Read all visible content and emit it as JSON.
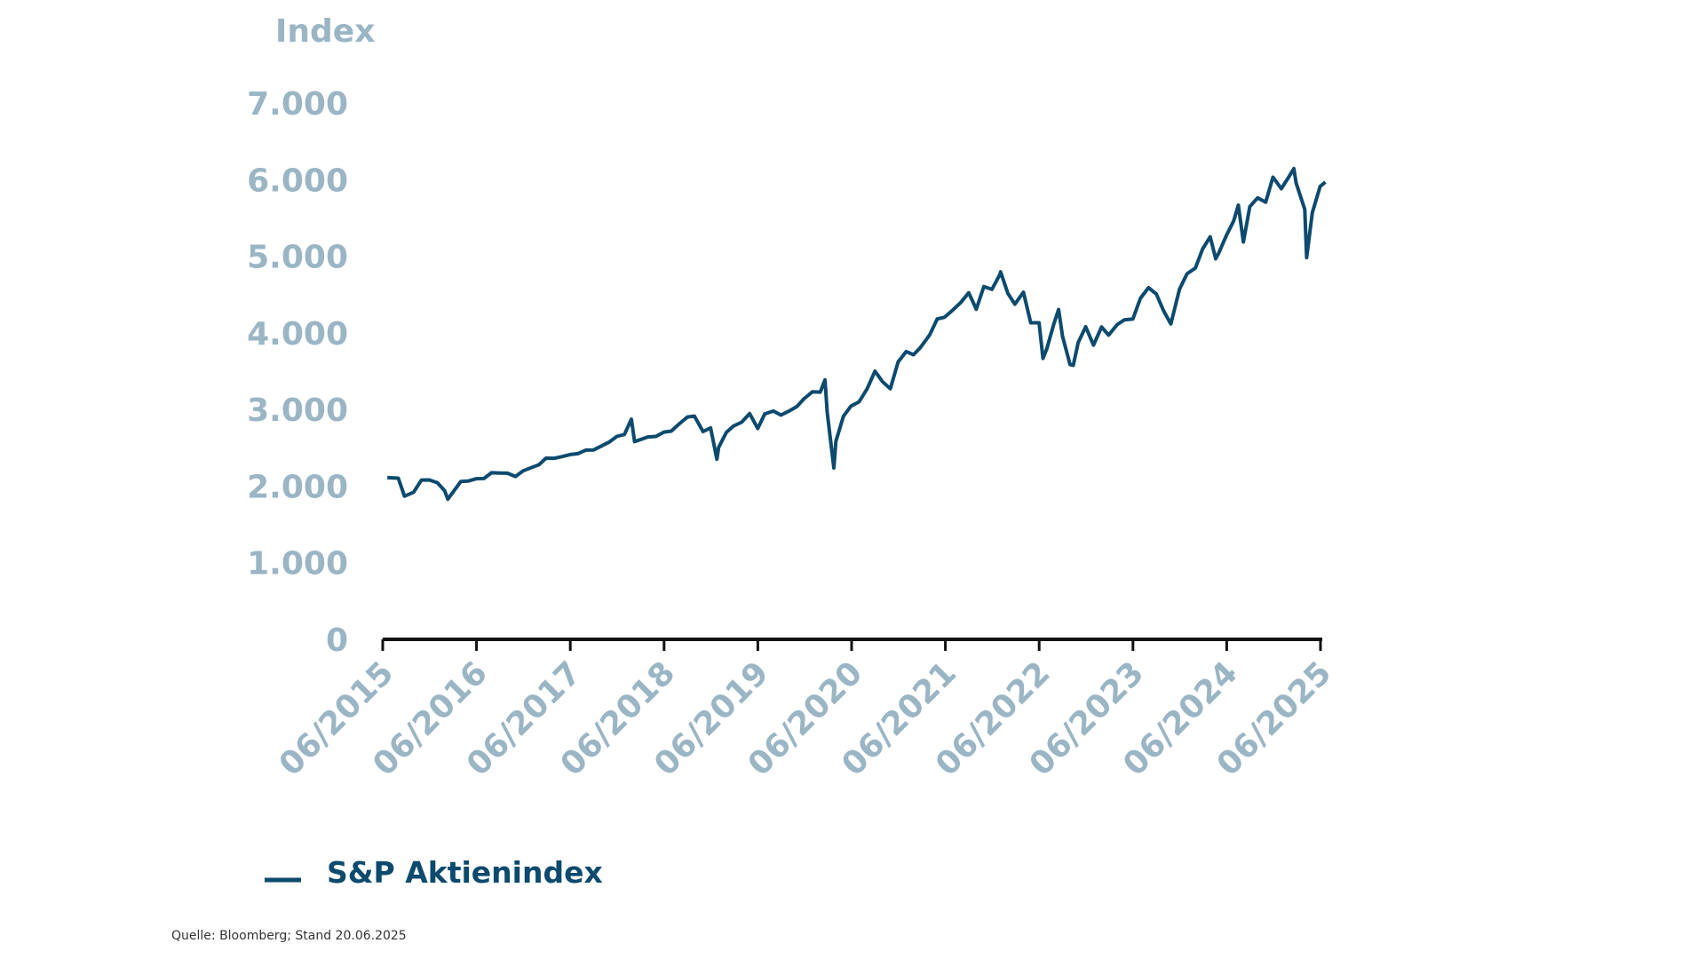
{
  "chart_data": {
    "type": "line",
    "title": "",
    "ylabel": "Index",
    "xlabel": "",
    "ylim": [
      0,
      7000
    ],
    "yticks": [
      "0",
      "1.000",
      "2.000",
      "3.000",
      "4.000",
      "5.000",
      "6.000",
      "7.000"
    ],
    "ytick_values": [
      0,
      1000,
      2000,
      3000,
      4000,
      5000,
      6000,
      7000
    ],
    "xlim": [
      "2015-06",
      "2025-06"
    ],
    "xticks": [
      "06/2015",
      "06/2016",
      "06/2017",
      "06/2018",
      "06/2019",
      "06/2020",
      "06/2021",
      "06/2022",
      "06/2023",
      "06/2024",
      "06/2025"
    ],
    "grid": false,
    "legend_position": "bottom-left",
    "series": [
      {
        "name": "S&P Aktienindex",
        "color": "#0c4a6e",
        "x": [
          "2015-06-19",
          "2015-07-31",
          "2015-08-25",
          "2015-09-30",
          "2015-10-30",
          "2015-11-30",
          "2015-12-31",
          "2016-01-29",
          "2016-02-11",
          "2016-03-31",
          "2016-04-29",
          "2016-05-31",
          "2016-06-30",
          "2016-07-29",
          "2016-08-31",
          "2016-09-30",
          "2016-10-31",
          "2016-11-30",
          "2016-12-30",
          "2017-01-31",
          "2017-02-28",
          "2017-03-31",
          "2017-04-28",
          "2017-05-31",
          "2017-06-30",
          "2017-07-31",
          "2017-08-31",
          "2017-09-29",
          "2017-10-31",
          "2017-11-30",
          "2017-12-29",
          "2018-01-26",
          "2018-02-08",
          "2018-03-29",
          "2018-04-30",
          "2018-05-31",
          "2018-06-29",
          "2018-07-31",
          "2018-08-31",
          "2018-09-28",
          "2018-10-31",
          "2018-11-30",
          "2018-12-24",
          "2018-12-31",
          "2019-01-31",
          "2019-02-28",
          "2019-03-29",
          "2019-04-30",
          "2019-05-31",
          "2019-06-28",
          "2019-07-31",
          "2019-08-30",
          "2019-09-30",
          "2019-10-31",
          "2019-11-29",
          "2019-12-31",
          "2020-01-31",
          "2020-02-19",
          "2020-02-28",
          "2020-03-23",
          "2020-03-31",
          "2020-04-30",
          "2020-05-29",
          "2020-06-30",
          "2020-07-31",
          "2020-08-31",
          "2020-09-30",
          "2020-10-30",
          "2020-11-30",
          "2020-12-31",
          "2021-01-29",
          "2021-02-26",
          "2021-03-31",
          "2021-04-30",
          "2021-05-28",
          "2021-06-30",
          "2021-07-30",
          "2021-08-31",
          "2021-09-30",
          "2021-10-29",
          "2021-11-30",
          "2021-12-31",
          "2022-01-03",
          "2022-01-31",
          "2022-02-28",
          "2022-03-31",
          "2022-04-29",
          "2022-05-31",
          "2022-06-16",
          "2022-06-30",
          "2022-07-29",
          "2022-08-16",
          "2022-08-31",
          "2022-09-30",
          "2022-10-12",
          "2022-10-31",
          "2022-11-30",
          "2022-12-30",
          "2023-01-31",
          "2023-02-28",
          "2023-03-31",
          "2023-04-28",
          "2023-05-31",
          "2023-06-30",
          "2023-07-31",
          "2023-08-31",
          "2023-09-29",
          "2023-10-27",
          "2023-11-30",
          "2023-12-29",
          "2024-01-31",
          "2024-02-29",
          "2024-03-28",
          "2024-04-19",
          "2024-04-30",
          "2024-05-31",
          "2024-06-28",
          "2024-07-16",
          "2024-08-05",
          "2024-08-30",
          "2024-09-30",
          "2024-10-31",
          "2024-11-29",
          "2024-12-31",
          "2025-01-31",
          "2025-02-19",
          "2025-02-28",
          "2025-03-31",
          "2025-04-08",
          "2025-04-30",
          "2025-05-30",
          "2025-06-20"
        ],
        "values": [
          2110,
          2104,
          1868,
          1920,
          2079,
          2080,
          2044,
          1940,
          1829,
          2060,
          2065,
          2097,
          2099,
          2174,
          2171,
          2168,
          2126,
          2199,
          2239,
          2279,
          2364,
          2363,
          2384,
          2412,
          2423,
          2470,
          2472,
          2519,
          2575,
          2648,
          2674,
          2873,
          2581,
          2641,
          2648,
          2705,
          2718,
          2816,
          2902,
          2914,
          2712,
          2760,
          2351,
          2507,
          2704,
          2784,
          2834,
          2946,
          2752,
          2942,
          2980,
          2926,
          2977,
          3038,
          3141,
          3231,
          3226,
          3386,
          2954,
          2237,
          2585,
          2912,
          3044,
          3100,
          3271,
          3500,
          3363,
          3270,
          3622,
          3756,
          3714,
          3811,
          3973,
          4181,
          4204,
          4298,
          4395,
          4523,
          4308,
          4605,
          4567,
          4766,
          4796,
          4516,
          4374,
          4530,
          4132,
          4132,
          3667,
          3785,
          4130,
          4305,
          3955,
          3586,
          3577,
          3872,
          4080,
          3840,
          4077,
          3970,
          4109,
          4169,
          4180,
          4450,
          4589,
          4508,
          4288,
          4117,
          4568,
          4770,
          4846,
          5096,
          5254,
          4967,
          5036,
          5278,
          5460,
          5667,
          5186,
          5648,
          5762,
          5705,
          6032,
          5882,
          6041,
          6144,
          5955,
          5612,
          4982,
          5569,
          5912,
          5967
        ]
      }
    ]
  },
  "legend": {
    "label": "S&P Aktienindex"
  },
  "source": "Quelle: Bloomberg; Stand 20.06.2025"
}
